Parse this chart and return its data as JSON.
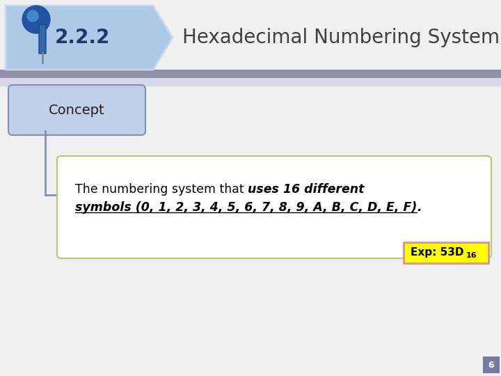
{
  "bg_color": "#f0f0f0",
  "title_text": "Hexadecimal Numbering System",
  "title_color": "#404040",
  "section_number": "2.2.2",
  "section_bg": "#aec8e8",
  "section_edge": "#c8d8f0",
  "section_text_color": "#1a3a6b",
  "divider_color_dark": "#9090a8",
  "divider_color_light": "#d8d8e8",
  "concept_box_bg": "#c0d0e8",
  "concept_box_border": "#8090b0",
  "concept_text": "Concept",
  "concept_text_color": "#202020",
  "content_box_bg": "#ffffff",
  "content_box_border": "#b8c870",
  "exp_box_bg": "#ffff00",
  "exp_box_border": "#e09090",
  "exp_text": "Exp: 53D",
  "exp_sub": "16",
  "page_num": "6",
  "page_box_color": "#7878a0",
  "connector_color": "#8090b8"
}
